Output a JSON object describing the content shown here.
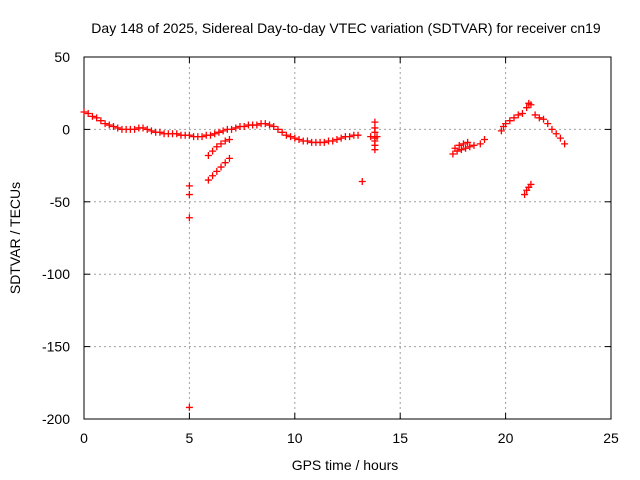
{
  "chart_data": {
    "type": "scatter",
    "title": "Day 148 of 2025, Sidereal Day-to-day VTEC variation (SDTVAR) for receiver cn19",
    "xlabel": "GPS time / hours",
    "ylabel": "SDTVAR / TECUs",
    "xlim": [
      0,
      25
    ],
    "ylim": [
      -200,
      50
    ],
    "x_ticks": [
      0,
      5,
      10,
      15,
      20,
      25
    ],
    "y_ticks": [
      -200,
      -150,
      -100,
      -50,
      0,
      50
    ],
    "x_tick_labels": [
      "0",
      "5",
      "10",
      "15",
      "20",
      "25"
    ],
    "y_tick_labels": [
      "-200",
      "-150",
      "-100",
      "-50",
      "0",
      "50"
    ],
    "grid": true,
    "marker": "+",
    "color": "#ff0000",
    "series": [
      {
        "name": "main-trace",
        "x": [
          0,
          0.2,
          0.4,
          0.6,
          0.8,
          1.0,
          1.2,
          1.4,
          1.6,
          1.8,
          2.0,
          2.2,
          2.4,
          2.6,
          2.8,
          3.0,
          3.2,
          3.4,
          3.6,
          3.8,
          4.0,
          4.2,
          4.4,
          4.6,
          4.8,
          5.0,
          5.2,
          5.4,
          5.6,
          5.8,
          6.0,
          6.2,
          6.4,
          6.6,
          6.8,
          7.0,
          7.2,
          7.4,
          7.6,
          7.8,
          8.0,
          8.2,
          8.4,
          8.6,
          8.8,
          9.0,
          9.2,
          9.4,
          9.6,
          9.8,
          10.0,
          10.2,
          10.4,
          10.6,
          10.8,
          11.0,
          11.2,
          11.4,
          11.6,
          11.8,
          12.0,
          12.2,
          12.4,
          12.6,
          12.8,
          13.0,
          13.6,
          13.8,
          13.9
        ],
        "y": [
          12,
          11,
          9,
          8,
          6,
          4,
          3,
          2,
          1,
          0,
          0,
          0,
          0,
          1,
          1,
          0,
          -1,
          -2,
          -2,
          -3,
          -3,
          -3,
          -3,
          -4,
          -4,
          -4,
          -5,
          -5,
          -5,
          -4,
          -4,
          -3,
          -2,
          -1,
          0,
          0,
          1,
          2,
          2,
          3,
          3,
          3,
          4,
          4,
          3,
          2,
          0,
          -2,
          -4,
          -5,
          -6,
          -7,
          -8,
          -8,
          -9,
          -9,
          -9,
          -9,
          -8,
          -8,
          -7,
          -6,
          -5,
          -5,
          -4,
          -4,
          -5,
          -6,
          -5
        ]
      },
      {
        "name": "spike-5h",
        "x": [
          5.0,
          5.0,
          5.0,
          5.0
        ],
        "y": [
          -39,
          -45,
          -61,
          -192
        ]
      },
      {
        "name": "branch-6h-upper",
        "x": [
          5.9,
          6.1,
          6.3,
          6.5,
          6.7,
          6.9
        ],
        "y": [
          -18,
          -15,
          -12,
          -10,
          -8,
          -7
        ]
      },
      {
        "name": "branch-6h-lower",
        "x": [
          5.9,
          6.1,
          6.3,
          6.5,
          6.7,
          6.9
        ],
        "y": [
          -35,
          -32,
          -29,
          -26,
          -23,
          -20
        ]
      },
      {
        "name": "scatter-13.8h",
        "x": [
          13.8,
          13.8,
          13.8,
          13.8,
          13.8,
          13.8
        ],
        "y": [
          5,
          1,
          -2,
          -8,
          -11,
          -14
        ]
      },
      {
        "name": "isolated-13.2h",
        "x": [
          13.2
        ],
        "y": [
          -36
        ]
      },
      {
        "name": "trace-17-19h",
        "x": [
          17.5,
          17.7,
          17.9,
          18.1,
          18.3,
          18.5,
          18.8,
          19.0,
          17.6,
          17.8,
          18.0,
          18.2
        ],
        "y": [
          -17,
          -15,
          -14,
          -13,
          -12,
          -11,
          -10,
          -7,
          -13,
          -11,
          -10,
          -9
        ]
      },
      {
        "name": "trace-20-23h",
        "x": [
          19.8,
          19.9,
          20.0,
          20.2,
          20.4,
          20.6,
          20.8,
          21.0,
          21.1,
          21.2,
          21.4,
          21.6,
          21.8,
          22.0,
          22.2,
          22.4,
          22.6,
          22.8
        ],
        "y": [
          -1,
          2,
          4,
          6,
          8,
          10,
          11,
          15,
          18,
          17,
          10,
          8,
          7,
          4,
          0,
          -3,
          -6,
          -10
        ]
      },
      {
        "name": "dip-21h",
        "x": [
          20.9,
          21.0,
          21.1,
          21.2
        ],
        "y": [
          -45,
          -42,
          -40,
          -38
        ]
      }
    ]
  }
}
